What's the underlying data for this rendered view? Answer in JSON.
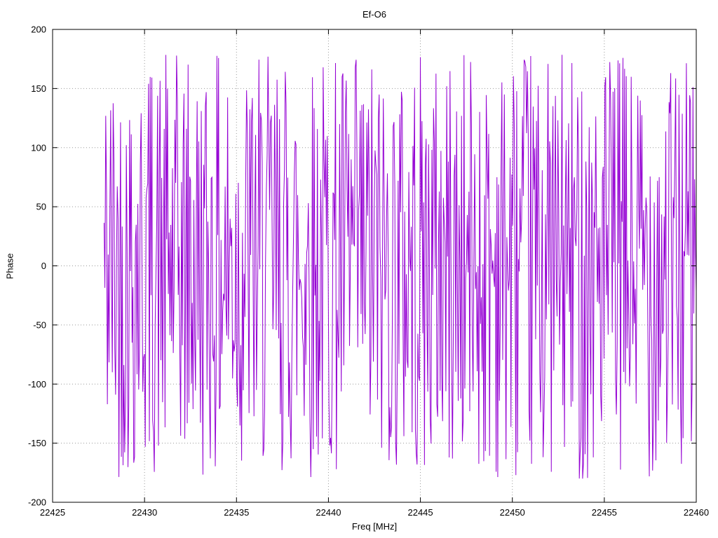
{
  "chart_data": {
    "type": "line",
    "title": "Ef-O6",
    "xlabel": "Freq [MHz]",
    "ylabel": "Phase",
    "xlim": [
      22425,
      22460
    ],
    "ylim": [
      -200,
      200
    ],
    "xticks": [
      22425,
      22430,
      22435,
      22440,
      22445,
      22450,
      22455,
      22460
    ],
    "yticks": [
      -200,
      -150,
      -100,
      -50,
      0,
      50,
      100,
      150,
      200
    ],
    "grid": true,
    "legend_position": "none",
    "background_color": "#ffffff",
    "border_color": "#000000",
    "grid_color": "#9a9a9a",
    "series": [
      {
        "name": "phase",
        "color": "#9400d3",
        "description": "Wrapped interferometric fringe phase, noise-like, approximately uniform in [-180, 180] degrees",
        "x_start": 22427.8,
        "x_end": 22460.0,
        "n_points": 720,
        "y_min": -180,
        "y_max": 180,
        "random_seed": 42
      }
    ]
  }
}
